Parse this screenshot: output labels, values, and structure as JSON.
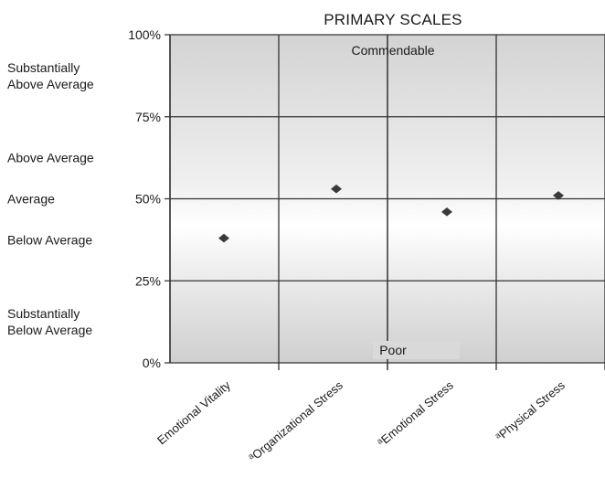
{
  "chart_data": {
    "type": "scatter",
    "title": "PRIMARY SCALES",
    "categories": [
      "Emotional Vitality",
      "Organizational Stress",
      "Emotional Stress",
      "Physical Stress"
    ],
    "category_prefix": [
      "",
      "a",
      "a",
      "a"
    ],
    "values": [
      38,
      53,
      46,
      51
    ],
    "y_unit": "%",
    "ylim": [
      0,
      100
    ],
    "y_ticks": [
      {
        "value": 0,
        "label": "0%"
      },
      {
        "value": 25,
        "label": "25%"
      },
      {
        "value": 50,
        "label": "50%"
      },
      {
        "value": 75,
        "label": "75%"
      },
      {
        "value": 100,
        "label": "100%"
      }
    ],
    "bands": [
      {
        "lines": [
          "Substantially",
          "Above Average"
        ],
        "range": [
          75,
          100
        ]
      },
      {
        "lines": [
          "Above Average"
        ],
        "range": [
          50,
          75
        ]
      },
      {
        "lines": [
          "Average"
        ],
        "range": [
          40,
          60
        ]
      },
      {
        "lines": [
          "Below Average"
        ],
        "range": [
          25,
          50
        ]
      },
      {
        "lines": [
          "Substantially",
          "Below Average"
        ],
        "range": [
          0,
          25
        ]
      }
    ],
    "annotations": {
      "top": "Commendable",
      "bottom": "Poor"
    },
    "grid": true,
    "marker_color": "#3a3a3a"
  }
}
